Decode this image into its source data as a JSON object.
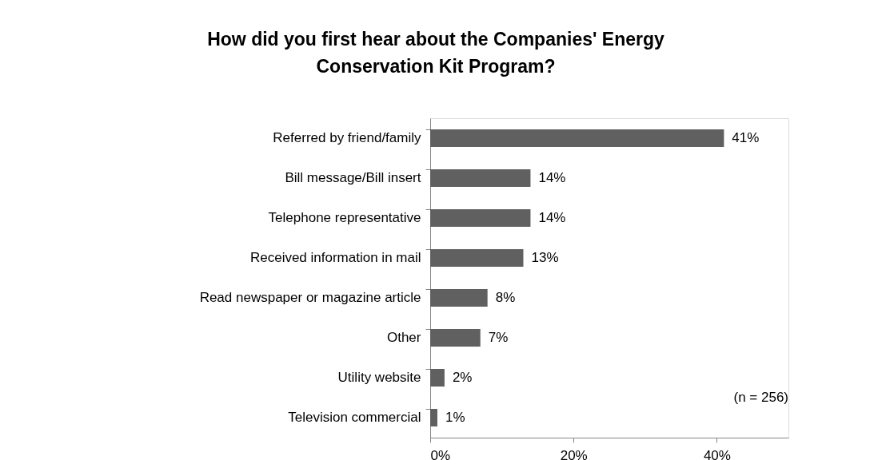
{
  "chart_data": {
    "type": "bar",
    "orientation": "horizontal",
    "title": "How did you first hear about the Companies' Energy Conservation Kit Program?",
    "categories": [
      "Referred by friend/family",
      "Bill message/Bill insert",
      "Telephone representative",
      "Received information in mail",
      "Read newspaper or magazine article",
      "Other",
      "Utility website",
      "Television commercial"
    ],
    "values": [
      41,
      14,
      14,
      13,
      8,
      7,
      2,
      1
    ],
    "value_labels": [
      "41%",
      "14%",
      "14%",
      "13%",
      "8%",
      "7%",
      "2%",
      "1%"
    ],
    "color": "#606060",
    "xlim": [
      0,
      50
    ],
    "xticks": [
      {
        "value": 0,
        "label": "0%"
      },
      {
        "value": 20,
        "label": "20%"
      },
      {
        "value": 40,
        "label": "40%"
      }
    ],
    "grid": false,
    "annotations": [
      "(n = 256)"
    ]
  }
}
